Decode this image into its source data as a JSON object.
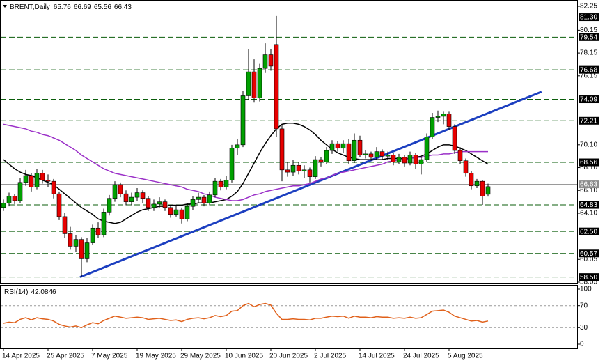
{
  "chart_data": {
    "type": "candlestick",
    "symbol": "BRENT,Daily",
    "colors": {
      "up": "#00a000",
      "down": "#e80000",
      "wick": "#000000"
    },
    "categories": [
      "14 Apr 2025",
      null,
      null,
      null,
      null,
      null,
      null,
      null,
      "25 Apr 2025",
      null,
      null,
      null,
      null,
      null,
      null,
      null,
      "7 May 2025",
      null,
      null,
      null,
      null,
      null,
      null,
      null,
      "19 May 2025",
      null,
      null,
      null,
      null,
      null,
      null,
      null,
      "29 May 2025",
      null,
      null,
      null,
      null,
      null,
      null,
      null,
      "10 Jun 2025",
      null,
      null,
      null,
      null,
      null,
      null,
      null,
      "20 Jun 2025",
      null,
      null,
      null,
      null,
      null,
      null,
      null,
      "2 Jul 2025",
      null,
      null,
      null,
      null,
      null,
      null,
      null,
      "14 Jul 2025",
      null,
      null,
      null,
      null,
      null,
      null,
      null,
      "24 Jul 2025",
      null,
      null,
      null,
      null,
      null,
      null,
      null,
      "5 Aug 2025",
      null,
      null,
      null,
      null,
      null,
      null,
      null
    ],
    "candles": [
      [
        64.6,
        65.3,
        64.3,
        65.0
      ],
      [
        65.0,
        65.9,
        64.7,
        65.6
      ],
      [
        65.6,
        65.8,
        64.9,
        65.2
      ],
      [
        65.2,
        67.2,
        65.0,
        66.8
      ],
      [
        66.8,
        67.9,
        66.5,
        67.4
      ],
      [
        67.4,
        67.6,
        66.0,
        66.4
      ],
      [
        66.4,
        68.0,
        66.2,
        67.6
      ],
      [
        67.6,
        67.9,
        66.7,
        67.0
      ],
      [
        67.0,
        67.5,
        66.4,
        66.9
      ],
      [
        66.9,
        67.1,
        65.4,
        65.8
      ],
      [
        65.8,
        66.0,
        63.5,
        63.8
      ],
      [
        63.8,
        64.1,
        61.9,
        62.3
      ],
      [
        62.3,
        62.9,
        60.9,
        61.2
      ],
      [
        61.2,
        62.2,
        60.7,
        61.8
      ],
      [
        61.8,
        62.0,
        58.5,
        60.1
      ],
      [
        60.1,
        61.9,
        59.8,
        61.5
      ],
      [
        61.5,
        63.1,
        61.3,
        62.8
      ],
      [
        62.8,
        63.3,
        61.9,
        62.2
      ],
      [
        62.2,
        64.5,
        62.0,
        64.2
      ],
      [
        64.2,
        65.7,
        63.9,
        65.4
      ],
      [
        65.4,
        66.9,
        65.1,
        66.6
      ],
      [
        66.6,
        66.8,
        65.5,
        65.8
      ],
      [
        65.8,
        66.1,
        64.8,
        65.1
      ],
      [
        65.1,
        65.9,
        64.8,
        65.5
      ],
      [
        65.5,
        66.3,
        65.2,
        65.9
      ],
      [
        65.9,
        66.1,
        65.0,
        65.4
      ],
      [
        65.4,
        65.6,
        64.3,
        64.6
      ],
      [
        64.6,
        65.3,
        64.3,
        64.9
      ],
      [
        64.9,
        65.5,
        64.6,
        65.1
      ],
      [
        65.1,
        65.3,
        64.3,
        64.6
      ],
      [
        64.6,
        64.8,
        63.7,
        64.0
      ],
      [
        64.0,
        64.8,
        63.8,
        64.4
      ],
      [
        64.4,
        64.6,
        63.2,
        63.6
      ],
      [
        63.6,
        65.0,
        63.4,
        64.7
      ],
      [
        64.7,
        65.6,
        64.4,
        65.3
      ],
      [
        65.3,
        65.9,
        65.0,
        65.5
      ],
      [
        65.5,
        65.7,
        64.7,
        65.0
      ],
      [
        65.0,
        66.0,
        64.8,
        65.7
      ],
      [
        65.7,
        67.2,
        65.5,
        66.9
      ],
      [
        66.9,
        67.1,
        66.1,
        66.4
      ],
      [
        66.4,
        67.4,
        66.2,
        67.0
      ],
      [
        67.0,
        70.1,
        66.8,
        69.8
      ],
      [
        69.8,
        70.6,
        69.2,
        70.1
      ],
      [
        70.1,
        74.8,
        69.9,
        74.4
      ],
      [
        74.4,
        78.5,
        74.0,
        76.5
      ],
      [
        76.5,
        77.6,
        73.8,
        74.2
      ],
      [
        74.2,
        77.2,
        73.9,
        76.8
      ],
      [
        76.8,
        79.0,
        76.4,
        78.0
      ],
      [
        78.0,
        78.5,
        76.6,
        77.0
      ],
      [
        78.9,
        81.4,
        70.8,
        71.5
      ],
      [
        71.5,
        71.8,
        66.9,
        67.9
      ],
      [
        67.9,
        68.6,
        67.3,
        67.7
      ],
      [
        67.7,
        68.8,
        67.4,
        68.3
      ],
      [
        68.3,
        68.6,
        67.5,
        67.8
      ],
      [
        67.8,
        68.3,
        67.2,
        67.9
      ],
      [
        67.9,
        68.1,
        66.8,
        67.3
      ],
      [
        67.3,
        69.1,
        67.1,
        68.8
      ],
      [
        68.8,
        69.0,
        68.2,
        68.6
      ],
      [
        68.6,
        69.9,
        68.4,
        69.6
      ],
      [
        69.6,
        70.5,
        69.3,
        70.2
      ],
      [
        70.2,
        70.4,
        69.5,
        69.8
      ],
      [
        69.8,
        70.5,
        69.4,
        70.2
      ],
      [
        70.2,
        70.6,
        68.4,
        68.7
      ],
      [
        68.7,
        71.1,
        68.5,
        70.5
      ],
      [
        70.5,
        70.9,
        69.0,
        69.2
      ],
      [
        69.2,
        69.6,
        68.9,
        69.3
      ],
      [
        69.3,
        69.5,
        68.7,
        69.0
      ],
      [
        69.0,
        69.9,
        68.8,
        69.5
      ],
      [
        69.5,
        69.7,
        68.8,
        69.1
      ],
      [
        69.1,
        69.5,
        68.8,
        69.2
      ],
      [
        69.2,
        69.4,
        68.3,
        68.6
      ],
      [
        68.6,
        69.3,
        68.4,
        69.0
      ],
      [
        69.0,
        69.2,
        68.2,
        68.5
      ],
      [
        68.5,
        69.5,
        68.3,
        69.2
      ],
      [
        69.2,
        69.4,
        68.0,
        68.4
      ],
      [
        68.4,
        69.1,
        67.5,
        68.8
      ],
      [
        68.8,
        71.1,
        68.6,
        70.8
      ],
      [
        70.8,
        72.9,
        70.6,
        72.5
      ],
      [
        72.5,
        73.1,
        72.1,
        72.6
      ],
      [
        72.6,
        73.0,
        71.9,
        72.8
      ],
      [
        72.8,
        73.0,
        71.4,
        71.7
      ],
      [
        71.7,
        71.9,
        69.3,
        69.6
      ],
      [
        69.6,
        69.9,
        68.4,
        68.7
      ],
      [
        68.7,
        68.9,
        67.3,
        67.6
      ],
      [
        67.6,
        67.8,
        66.2,
        66.5
      ],
      [
        66.5,
        67.1,
        66.3,
        66.9
      ],
      [
        66.9,
        67.0,
        64.83,
        65.6
      ],
      [
        65.76,
        66.69,
        65.56,
        66.43
      ]
    ],
    "moving_averages": [
      {
        "color": "#000000",
        "values": [
          68.8,
          68.4,
          68.0,
          67.7,
          67.5,
          67.4,
          67.2,
          67.0,
          66.8,
          66.6,
          66.2,
          65.8,
          65.4,
          65.0,
          64.6,
          64.3,
          64.0,
          63.6,
          63.4,
          63.3,
          63.2,
          63.3,
          63.6,
          63.9,
          64.2,
          64.4,
          64.5,
          64.6,
          64.7,
          64.7,
          64.8,
          64.8,
          64.8,
          64.9,
          64.9,
          65.0,
          65.0,
          65.0,
          65.1,
          65.2,
          65.3,
          65.6,
          66.0,
          66.7,
          67.6,
          68.5,
          69.4,
          70.2,
          70.9,
          71.5,
          71.9,
          72.0,
          72.0,
          71.9,
          71.7,
          71.4,
          71.0,
          70.5,
          70.1,
          69.7,
          69.4,
          69.2,
          69.0,
          68.9,
          68.8,
          68.8,
          68.8,
          68.8,
          68.8,
          68.9,
          68.9,
          68.9,
          68.9,
          68.9,
          69.0,
          69.1,
          69.3,
          69.6,
          69.9,
          70.1,
          70.1,
          70.0,
          69.8,
          69.6,
          69.3,
          69.0,
          68.7,
          68.4
        ]
      },
      {
        "color": "#9b30c8",
        "values": [
          71.9,
          71.8,
          71.7,
          71.6,
          71.5,
          71.3,
          71.2,
          71.0,
          70.9,
          70.7,
          70.5,
          70.2,
          69.9,
          69.6,
          69.2,
          68.9,
          68.6,
          68.3,
          68.0,
          67.8,
          67.6,
          67.5,
          67.4,
          67.3,
          67.2,
          67.1,
          67.0,
          66.9,
          66.8,
          66.7,
          66.6,
          66.5,
          66.4,
          66.2,
          66.1,
          66.0,
          65.8,
          65.7,
          65.5,
          65.4,
          65.3,
          65.2,
          65.2,
          65.3,
          65.5,
          65.7,
          65.8,
          66.0,
          66.1,
          66.2,
          66.3,
          66.4,
          66.5,
          66.5,
          66.6,
          66.7,
          66.9,
          67.1,
          67.2,
          67.4,
          67.6,
          67.7,
          67.8,
          67.9,
          68.0,
          68.1,
          68.2,
          68.3,
          68.4,
          68.6,
          68.7,
          68.8,
          68.8,
          68.9,
          69.0,
          69.0,
          69.1,
          69.2,
          69.2,
          69.3,
          69.3,
          69.4,
          69.5,
          69.5,
          69.5,
          69.5,
          69.5,
          69.5
        ]
      }
    ],
    "trend_line": {
      "color": "#1c3fc0",
      "x": [
        13.75,
        96.6
      ],
      "values": [
        58.5,
        74.75
      ]
    },
    "ylim": [
      58.05,
      82.25
    ],
    "yticks": [
      82.25,
      80.15,
      78.15,
      76.15,
      {
        "value": 70.1,
        "label": "70.10"
      },
      {
        "value": 68.1,
        "label": "68.10"
      },
      {
        "value": 66.1,
        "label": "66.10"
      },
      {
        "value": 64.1,
        "label": "64.10"
      },
      60.05,
      58.05
    ],
    "level_color": "#0b5d0b",
    "levels": [
      {
        "value": 81.3,
        "label": "81.30"
      },
      79.54,
      76.68,
      74.09,
      72.21,
      68.56,
      64.83,
      {
        "value": 62.5,
        "label": "62.50"
      },
      60.57,
      {
        "value": 58.5,
        "label": "58.50"
      }
    ],
    "last_price": 66.63,
    "last_price_color": "#8c8c8c",
    "rsi": {
      "title": "RSI(14)",
      "last": 42.0846,
      "color": "#e0601a",
      "ylim": [
        0,
        100
      ],
      "yticks": [
        0,
        30,
        70,
        100
      ],
      "values": [
        38,
        40,
        39,
        45,
        48,
        44,
        48,
        46,
        45,
        42,
        36,
        33,
        31,
        33,
        30,
        35,
        39,
        37,
        43,
        47,
        51,
        49,
        47,
        48,
        49,
        48,
        45,
        46,
        47,
        45,
        43,
        44,
        41,
        45,
        47,
        48,
        46,
        48,
        52,
        50,
        52,
        60,
        61,
        70,
        74,
        68,
        72,
        74,
        71,
        56,
        45,
        45,
        46,
        45,
        45,
        44,
        47,
        47,
        49,
        51,
        50,
        51,
        47,
        51,
        49,
        49,
        48,
        50,
        49,
        49,
        47,
        48,
        47,
        49,
        47,
        48,
        54,
        60,
        61,
        62,
        58,
        51,
        48,
        45,
        42,
        43,
        40,
        42
      ]
    }
  }
}
